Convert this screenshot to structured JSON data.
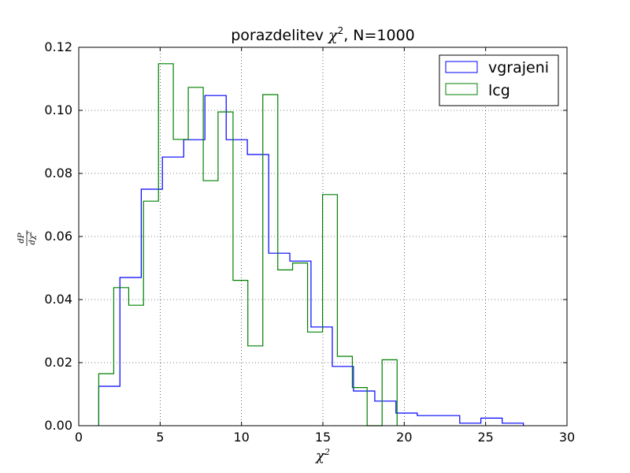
{
  "chart_data": {
    "type": "histogram-step",
    "title": {
      "prefix": "porazdelitev ",
      "symbol": "χ",
      "superscript": "2",
      "suffix": ", N=1000"
    },
    "xlabel": {
      "symbol": "χ",
      "superscript": "2"
    },
    "ylabel": {
      "numerator": "dP",
      "denominator_symbol": "dχ",
      "denominator_sup": "2"
    },
    "xlim": [
      0,
      30
    ],
    "ylim": [
      0,
      0.12
    ],
    "xticks": [
      0,
      5,
      10,
      15,
      20,
      25,
      30
    ],
    "xtick_labels": [
      "0",
      "5",
      "10",
      "15",
      "20",
      "25",
      "30"
    ],
    "yticks": [
      0,
      0.02,
      0.04,
      0.06,
      0.08,
      0.1,
      0.12
    ],
    "ytick_labels": [
      "0.00",
      "0.02",
      "0.04",
      "0.06",
      "0.08",
      "0.10",
      "0.12"
    ],
    "grid": true,
    "legend_position": "top-right",
    "series": [
      {
        "name": "vgrajeni",
        "color": "#0000ff",
        "edges": [
          1.23,
          2.53,
          3.84,
          5.14,
          6.45,
          7.75,
          9.06,
          10.36,
          11.67,
          12.97,
          14.27,
          15.58,
          16.88,
          18.19,
          19.49,
          20.8,
          22.1,
          23.41,
          24.71,
          26.02,
          27.32
        ],
        "heights": [
          0.0125,
          0.047,
          0.075,
          0.0852,
          0.0907,
          0.1047,
          0.0907,
          0.086,
          0.0547,
          0.0522,
          0.0313,
          0.0188,
          0.011,
          0.0078,
          0.004,
          0.0032,
          0.0032,
          0.0008,
          0.0024,
          0.0008
        ]
      },
      {
        "name": "lcg",
        "color": "#008000",
        "edges": [
          1.23,
          2.15,
          3.07,
          3.98,
          4.9,
          5.81,
          6.73,
          7.65,
          8.56,
          9.48,
          10.39,
          11.31,
          12.23,
          13.14,
          14.06,
          14.98,
          15.89,
          16.81,
          17.72,
          18.64,
          19.56
        ],
        "heights": [
          0.0165,
          0.0438,
          0.0382,
          0.0712,
          0.1148,
          0.0908,
          0.1073,
          0.0777,
          0.0995,
          0.0461,
          0.0253,
          0.105,
          0.0494,
          0.0516,
          0.0297,
          0.0733,
          0.022,
          0.0121,
          0.0,
          0.0209
        ]
      }
    ]
  }
}
